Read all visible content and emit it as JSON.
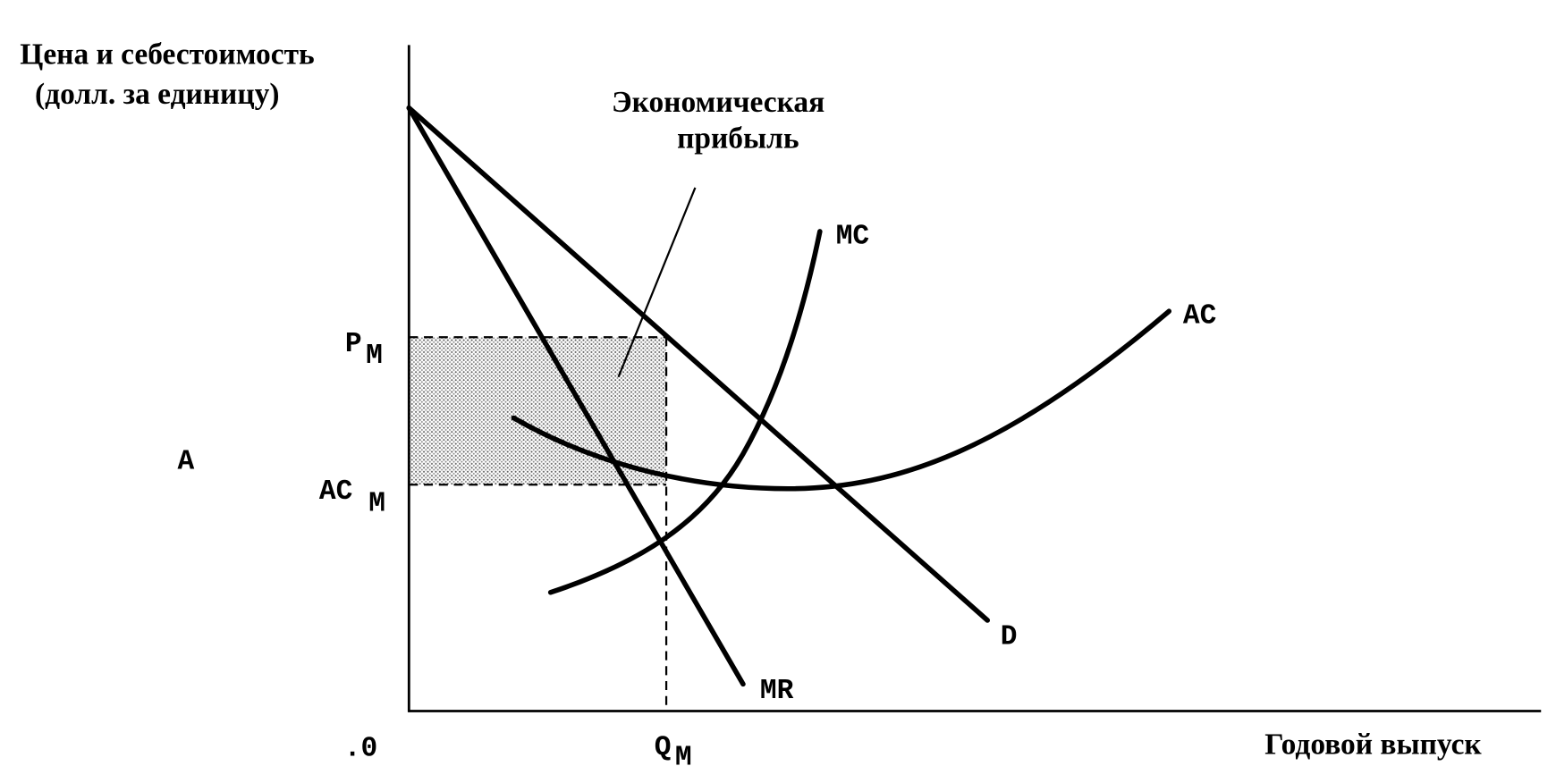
{
  "axes": {
    "y_title": [
      "Цена и себестоимость",
      "(долл. за единицу)"
    ],
    "x_title": "Годовой выпуск",
    "origin": ".0"
  },
  "annotation": [
    "Экономическая",
    "прибыль"
  ],
  "curves": {
    "mc": "MC",
    "ac": "AC",
    "d": "D",
    "mr": "MR"
  },
  "levels": {
    "pm": {
      "main": "P",
      "sub": "M"
    },
    "acm": {
      "main": "AC",
      "sub": "M"
    },
    "qm": {
      "main": "Q",
      "sub": "M"
    }
  },
  "point_label": "A"
}
